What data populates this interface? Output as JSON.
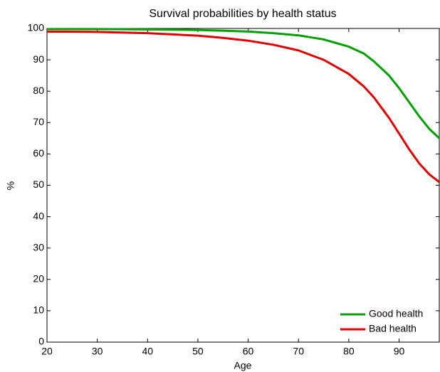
{
  "chart_data": {
    "type": "line",
    "title": "Survival probabilities by health status",
    "x_label": "Age",
    "y_label": "%",
    "x": [
      20,
      30,
      40,
      50,
      55,
      60,
      65,
      70,
      75,
      80,
      83,
      85,
      88,
      90,
      92,
      94,
      96,
      98
    ],
    "series": [
      {
        "name": "Good health",
        "color": "#00a000",
        "values": [
          99.8,
          99.8,
          99.7,
          99.5,
          99.3,
          99.0,
          98.5,
          97.8,
          96.5,
          94.2,
          92,
          89.5,
          85,
          81,
          76.5,
          72,
          68,
          65
        ]
      },
      {
        "name": "Bad health",
        "color": "#e00000",
        "values": [
          99,
          98.9,
          98.5,
          97.7,
          97,
          96.1,
          94.8,
          93,
          90,
          85.5,
          81.5,
          78,
          71.5,
          66.5,
          61.5,
          57,
          53.5,
          51
        ]
      }
    ],
    "xlim": [
      20,
      98
    ],
    "ylim": [
      0,
      100
    ],
    "xticks": [
      20,
      30,
      40,
      50,
      60,
      70,
      80,
      90
    ],
    "yticks": [
      0,
      10,
      20,
      30,
      40,
      50,
      60,
      70,
      80,
      90,
      100
    ],
    "legend": "lower right"
  }
}
